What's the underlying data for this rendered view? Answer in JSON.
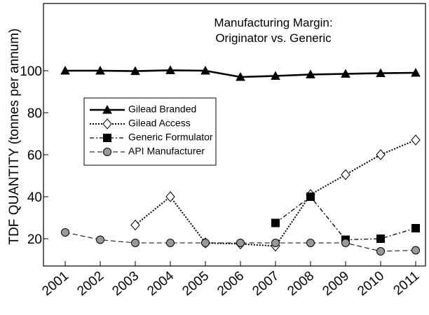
{
  "chart_data": {
    "type": "line",
    "title_lines": [
      "Manufacturing Margin:",
      "Originator vs. Generic"
    ],
    "y_label": "TDF QUANTITY (tonnes per annum)",
    "categories": [
      "2001",
      "2002",
      "2003",
      "2004",
      "2005",
      "2006",
      "2007",
      "2008",
      "2009",
      "2010",
      "2011"
    ],
    "series": [
      {
        "name": "Gilead Branded",
        "color": "#000000",
        "values": [
          100,
          100,
          99.8,
          100.2,
          100,
          97,
          97.5,
          98.2,
          98.5,
          98.8,
          99
        ]
      },
      {
        "name": "Gilead Access",
        "color": "#000000",
        "values": [
          null,
          null,
          26.5,
          40,
          18,
          17.5,
          16.5,
          41,
          50.5,
          60,
          67
        ]
      },
      {
        "name": "Generic Formulator",
        "color": "#000000",
        "values": [
          null,
          null,
          null,
          null,
          null,
          null,
          27.5,
          40,
          19.5,
          20,
          25
        ]
      },
      {
        "name": "API Manufacturer",
        "color": "#999999",
        "values": [
          23,
          19.5,
          18,
          18,
          18,
          18,
          18,
          18,
          18,
          14,
          14.5
        ]
      }
    ],
    "ylim": [
      7,
      132
    ],
    "yticks": [
      20,
      40,
      60,
      80,
      100
    ],
    "grid": false
  }
}
